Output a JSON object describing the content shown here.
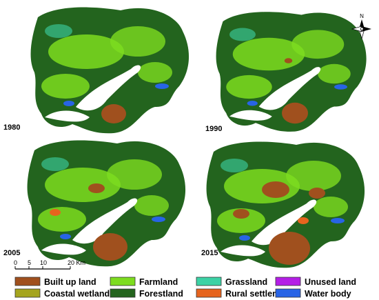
{
  "panels": [
    {
      "year": "1980"
    },
    {
      "year": "1990"
    },
    {
      "year": "2005"
    },
    {
      "year": "2015"
    }
  ],
  "north_arrow": "N",
  "scale_bar": {
    "labels": [
      "0",
      "5",
      "10",
      "20 Km"
    ]
  },
  "legend": [
    {
      "label": "Built up land",
      "color": "#a0501e"
    },
    {
      "label": "Farmland",
      "color": "#7ddc1f"
    },
    {
      "label": "Grassland",
      "color": "#3cd2a5"
    },
    {
      "label": "Unused land",
      "color": "#b41ee6"
    },
    {
      "label": "Coastal wetlands",
      "color": "#a5a51e"
    },
    {
      "label": "Forestland",
      "color": "#23641e"
    },
    {
      "label": "Rural settlements",
      "color": "#e6641e"
    },
    {
      "label": "Water body",
      "color": "#2864e6"
    }
  ]
}
